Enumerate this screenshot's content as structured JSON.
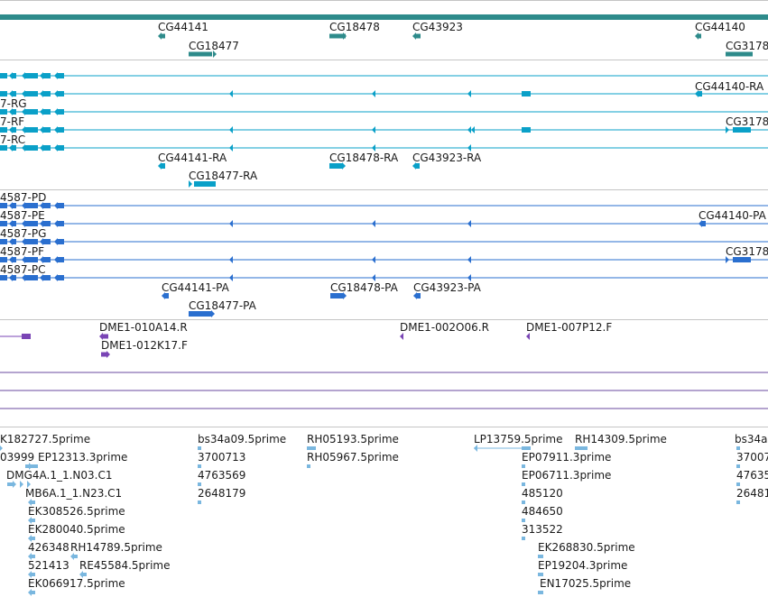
{
  "colors": {
    "gene": "#2e8b8b",
    "transcript_cyan": "#0aa0c8",
    "transcript_blue": "#2a6fcf",
    "clone_purple": "#7a45b5",
    "line_purple": "#6a4a9f",
    "est_light": "#7ab7df",
    "separator": "#c4c4c4"
  },
  "gene_track": {
    "labels": [
      "CG44141",
      "CG18478",
      "CG43923",
      "CG44140",
      "CG18477",
      "CG3178"
    ]
  },
  "transcript_track_a": {
    "labels": [
      "7-RG",
      "7-RF",
      "7-RC",
      "CG44140-RA",
      "CG3178",
      "CG44141-RA",
      "CG18478-RA",
      "CG43923-RA",
      "CG18477-RA"
    ]
  },
  "transcript_track_b": {
    "labels": [
      "4587-PD",
      "4587-PE",
      "4587-PG",
      "4587-PF",
      "4587-PC",
      "CG44140-PA",
      "CG3178",
      "CG44141-PA",
      "CG18478-PA",
      "CG43923-PA",
      "CG18477-PA"
    ]
  },
  "clone_track": {
    "labels": [
      "DME1-010A14.R",
      "DME1-012K17.F",
      "DME1-002O06.R",
      "DME1-007P12.F"
    ]
  },
  "est_track": {
    "labels": [
      "K182727.5prime",
      "bs34a09.5prime",
      "RH05193.5prime",
      "LP13759.5prime",
      "RH14309.5prime",
      "bs34a",
      "03999",
      "EP12313.3prime",
      "3700713",
      "RH05967.5prime",
      "EP07911.3prime",
      "37007",
      "DMG4A.1_1.N03.C1",
      "4763569",
      "EP06711.3prime",
      "47635",
      "MB6A.1_1.N23.C1",
      "2648179",
      "485120",
      "26481",
      "EK308526.5prime",
      "484650",
      "EK280040.5prime",
      "313522",
      "426348",
      "RH14789.5prime",
      "EK268830.5prime",
      "521413",
      "RE45584.5prime",
      "EP19204.3prime",
      "EK066917.5prime",
      "EN17025.5prime"
    ]
  }
}
